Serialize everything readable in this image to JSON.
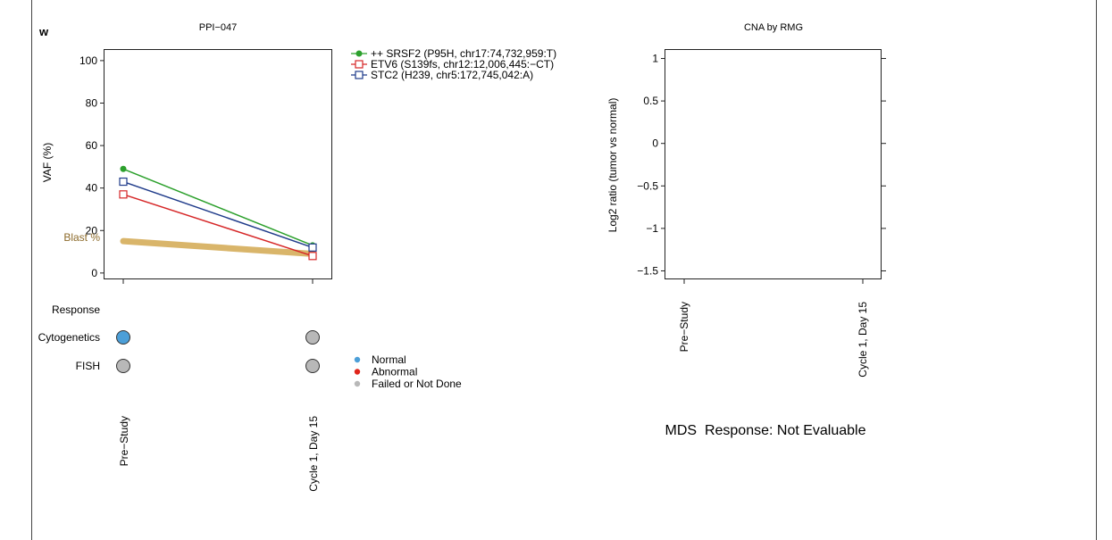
{
  "panel_letter": "w",
  "colors": {
    "srsf2": "#2ca02c",
    "etv6": "#d62728",
    "stc2": "#1f3b8a",
    "blast": "#d9b56a",
    "blast_label": "#8c6a2a",
    "normal": "#4c9fd8",
    "abnormal": "#e0251b",
    "failed": "#b8b8b8"
  },
  "chart_data": [
    {
      "type": "line",
      "title": "PPI−047",
      "ylabel": "VAF (%)",
      "ylim": [
        -3,
        105
      ],
      "yticks": [
        0,
        20,
        40,
        60,
        80,
        100
      ],
      "x_categories": [
        "Pre−Study",
        "Cycle 1, Day 15"
      ],
      "series": [
        {
          "name": "++ SRSF2 (P95H, chr17:74,732,959:T)",
          "marker": "filled-circle",
          "color": "#2ca02c",
          "values": [
            49,
            13
          ]
        },
        {
          "name": "ETV6 (S139fs, chr12:12,006,445:−CT)",
          "marker": "open-square",
          "color": "#d62728",
          "values": [
            37,
            8
          ]
        },
        {
          "name": "STC2 (H239, chr5:172,745,042:A)",
          "marker": "open-square",
          "color": "#1f3b8a",
          "values": [
            43,
            12
          ]
        }
      ],
      "blast": {
        "label": "Blast %",
        "values": [
          15,
          9
        ]
      },
      "legend_position": "top-right"
    },
    {
      "type": "scatter",
      "title": "CNA by RMG",
      "ylabel": "Log2 ratio (tumor vs normal)",
      "ylim": [
        -1.6,
        1.1
      ],
      "yticks": [
        1,
        0.5,
        0,
        -0.5,
        -1,
        -1.5
      ],
      "ytick_labels": [
        "1",
        "0.5",
        "0",
        "−0.5",
        "−1",
        "−1.5"
      ],
      "x_categories": [
        "Pre−Study",
        "Cycle 1, Day 15"
      ],
      "series": []
    }
  ],
  "response": {
    "rows": [
      "Response",
      "Cytogenetics",
      "FISH"
    ],
    "cytogenetics": [
      "normal",
      "failed"
    ],
    "fish": [
      "failed",
      "failed"
    ],
    "legend": [
      {
        "key": "normal",
        "label": "Normal"
      },
      {
        "key": "abnormal",
        "label": "Abnormal"
      },
      {
        "key": "failed",
        "label": "Failed or Not Done"
      }
    ]
  },
  "mds_response": "MDS  Response: Not Evaluable"
}
